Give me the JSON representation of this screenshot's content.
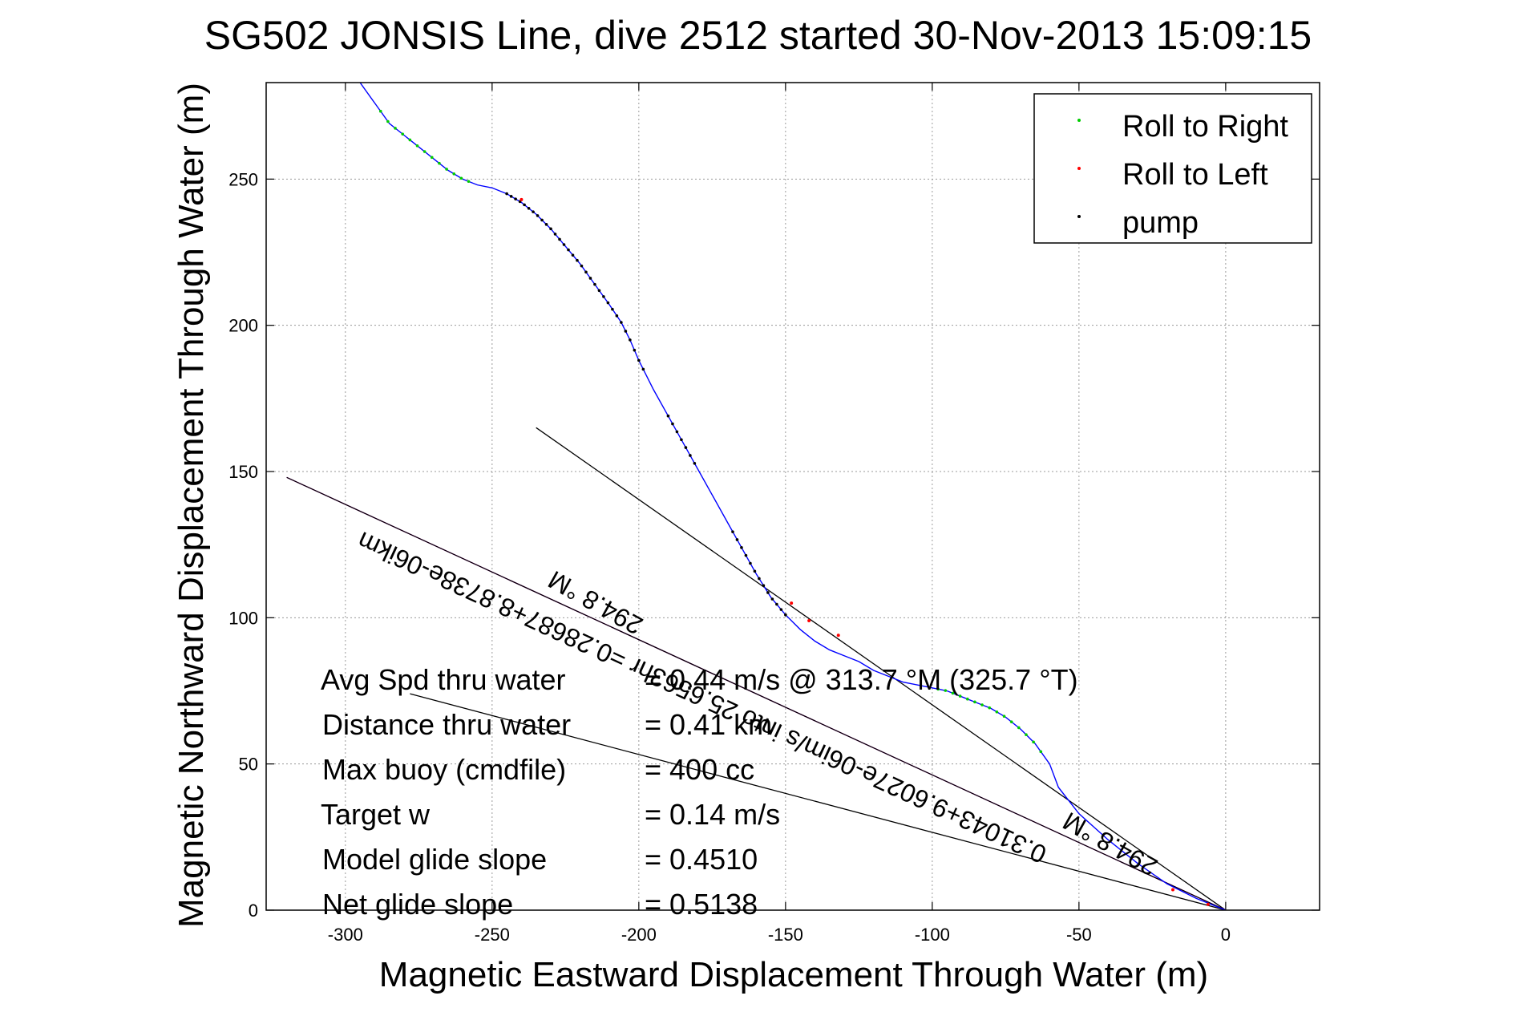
{
  "chart_data": {
    "type": "scatter",
    "title": "SG502 JONSIS Line, dive 2512 started 30-Nov-2013 15:09:15",
    "xlabel": "Magnetic Eastward Displacement Through Water (m)",
    "ylabel": "Magnetic Northward Displacement Through Water (m)",
    "xlim": [
      -327,
      32
    ],
    "ylim": [
      0,
      283
    ],
    "xticks": [
      -300,
      -250,
      -200,
      -150,
      -100,
      -50,
      0
    ],
    "yticks": [
      0,
      50,
      100,
      150,
      200,
      250
    ],
    "grid": true,
    "legend_position": "top-right",
    "legend": [
      {
        "label": "Roll to Right",
        "color": "#00cc00"
      },
      {
        "label": "Roll to Left",
        "color": "#ff0000"
      },
      {
        "label": "pump",
        "color": "#000000"
      }
    ],
    "track": {
      "color": "#0000ff",
      "points": [
        [
          -295,
          283
        ],
        [
          -290,
          276
        ],
        [
          -285,
          269
        ],
        [
          -280,
          265
        ],
        [
          -275,
          261
        ],
        [
          -270,
          257
        ],
        [
          -265,
          253
        ],
        [
          -260,
          250
        ],
        [
          -255,
          248
        ],
        [
          -250,
          247
        ],
        [
          -245,
          245
        ],
        [
          -240,
          242
        ],
        [
          -235,
          238
        ],
        [
          -230,
          233
        ],
        [
          -225,
          227
        ],
        [
          -220,
          221
        ],
        [
          -215,
          214
        ],
        [
          -210,
          207
        ],
        [
          -206,
          201
        ],
        [
          -203,
          195
        ],
        [
          -200,
          188
        ],
        [
          -195,
          178
        ],
        [
          -190,
          169
        ],
        [
          -185,
          160
        ],
        [
          -180,
          151
        ],
        [
          -175,
          142
        ],
        [
          -170,
          133
        ],
        [
          -165,
          124
        ],
        [
          -160,
          115
        ],
        [
          -155,
          107
        ],
        [
          -150,
          101
        ],
        [
          -145,
          96
        ],
        [
          -140,
          92
        ],
        [
          -135,
          89
        ],
        [
          -130,
          87
        ],
        [
          -125,
          85
        ],
        [
          -120,
          82
        ],
        [
          -115,
          80
        ],
        [
          -110,
          78
        ],
        [
          -105,
          77
        ],
        [
          -100,
          76
        ],
        [
          -95,
          75
        ],
        [
          -90,
          73
        ],
        [
          -85,
          71
        ],
        [
          -80,
          69
        ],
        [
          -75,
          66
        ],
        [
          -70,
          62
        ],
        [
          -65,
          57
        ],
        [
          -60,
          50
        ],
        [
          -57,
          42
        ],
        [
          -50,
          33
        ],
        [
          -40,
          24
        ],
        [
          -30,
          16
        ],
        [
          -20,
          9
        ],
        [
          -10,
          4
        ],
        [
          0,
          0
        ]
      ],
      "roll_right_segments": [
        [
          -288,
          -258
        ],
        [
          -98,
          -62
        ]
      ],
      "roll_left_points": [
        [
          -240,
          243
        ],
        [
          -148,
          105
        ],
        [
          -142,
          99
        ],
        [
          -132,
          94
        ],
        [
          -18,
          7
        ],
        [
          -6,
          2
        ]
      ],
      "pump_segments": [
        [
          -245,
          -198
        ],
        [
          -190,
          -180
        ],
        [
          -168,
          -150
        ]
      ]
    },
    "lines": [
      {
        "name": "heading-line-1",
        "color": "#000000",
        "points": [
          [
            -235,
            165
          ],
          [
            0,
            0
          ]
        ]
      },
      {
        "name": "heading-line-2",
        "color": "#000000",
        "points": [
          [
            -278,
            74
          ],
          [
            0,
            0
          ]
        ]
      },
      {
        "name": "current-line",
        "color": "#ff00ff",
        "points": [
          [
            -320,
            148
          ],
          [
            0,
            0
          ]
        ]
      },
      {
        "name": "current-line-overlay",
        "color": "#000000",
        "points": [
          [
            -320,
            148
          ],
          [
            0,
            0
          ]
        ]
      }
    ],
    "annotations": [
      {
        "text": "0.31043+9.6027e-06im/s into 25.6563hr =0.28687+8.8738e-06ikm"
      },
      {
        "text": "294.8 °M"
      },
      {
        "text": "294.8 °M"
      }
    ],
    "stats": [
      {
        "label": "Avg Spd thru water",
        "value": "=  0.44 m/s @ 313.7 °M (325.7 °T)"
      },
      {
        "label": "Distance thru water",
        "value": "=  0.41 km"
      },
      {
        "label": "Max buoy (cmdfile)",
        "value": "= 400 cc"
      },
      {
        "label": "Target w",
        "value": "= 0.14 m/s"
      },
      {
        "label": "Model glide slope",
        "value": "= 0.4510"
      },
      {
        "label": "Net glide slope",
        "value": "= 0.5138"
      }
    ]
  }
}
